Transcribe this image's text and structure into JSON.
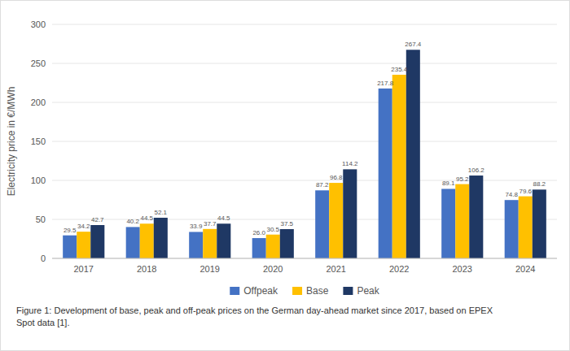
{
  "chart_data": {
    "type": "bar",
    "categories": [
      "2017",
      "2018",
      "2019",
      "2020",
      "2021",
      "2022",
      "2023",
      "2024"
    ],
    "series": [
      {
        "name": "Offpeak",
        "color": "#4472c4",
        "values": [
          29.5,
          40.2,
          33.9,
          26.0,
          87.2,
          217.8,
          89.1,
          74.8
        ],
        "value_labels": [
          "29.5",
          "40.2",
          "33.9",
          "26.0",
          "87.2",
          "217.8",
          "89.1",
          "74.8"
        ]
      },
      {
        "name": "Base",
        "color": "#ffc000",
        "values": [
          34.2,
          44.5,
          37.7,
          30.5,
          96.8,
          235.4,
          95.2,
          79.6
        ],
        "value_labels": [
          "34.2",
          "44.5",
          "37.7",
          "30.5",
          "96.8",
          "235.4",
          "95.2",
          "79.6"
        ]
      },
      {
        "name": "Peak",
        "color": "#1f3864",
        "values": [
          42.7,
          52.1,
          44.5,
          37.5,
          114.2,
          267.4,
          106.2,
          88.2
        ],
        "value_labels": [
          "42.7",
          "52.1",
          "44.5",
          "37.5",
          "114.2",
          "267.4",
          "106.2",
          "88.2"
        ]
      }
    ],
    "ylabel": "Electricity price in €/MWh",
    "ylim": [
      0,
      300
    ],
    "yticks": [
      0,
      50,
      100,
      150,
      200,
      250,
      300
    ],
    "grid": true,
    "data_labels": true,
    "legend": "bottom",
    "caption": "Figure 1: Development of base, peak and off-peak prices on the German day-ahead market since 2017, based on EPEX\nSpot data [1]."
  }
}
